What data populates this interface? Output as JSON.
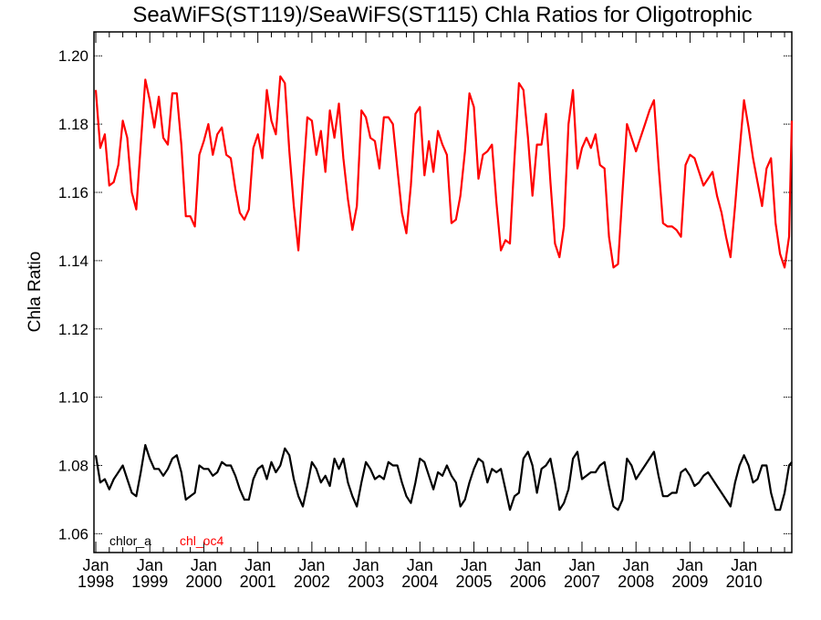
{
  "chart_data": {
    "type": "line",
    "title": "SeaWiFS(ST119)/SeaWiFS(ST115)  Chla Ratios for Oligotrophic",
    "xlabel": "",
    "ylabel": "Chla Ratio",
    "ylim": [
      1.0545,
      1.207
    ],
    "yticks": [
      "1.06",
      "1.08",
      "1.10",
      "1.12",
      "1.14",
      "1.16",
      "1.18",
      "1.20"
    ],
    "ytick_values": [
      1.06,
      1.08,
      1.1,
      1.12,
      1.14,
      1.16,
      1.18,
      1.2
    ],
    "xticks": [
      {
        "month": "Jan",
        "year": "1998"
      },
      {
        "month": "Jan",
        "year": "1999"
      },
      {
        "month": "Jan",
        "year": "2000"
      },
      {
        "month": "Jan",
        "year": "2001"
      },
      {
        "month": "Jan",
        "year": "2002"
      },
      {
        "month": "Jan",
        "year": "2003"
      },
      {
        "month": "Jan",
        "year": "2004"
      },
      {
        "month": "Jan",
        "year": "2005"
      },
      {
        "month": "Jan",
        "year": "2006"
      },
      {
        "month": "Jan",
        "year": "2007"
      },
      {
        "month": "Jan",
        "year": "2008"
      },
      {
        "month": "Jan",
        "year": "2009"
      },
      {
        "month": "Jan",
        "year": "2010"
      }
    ],
    "x_start": "1998-01",
    "x_step": "monthly",
    "grid": false,
    "legend": {
      "placement": "bottom-left",
      "entries": [
        "chlor_a",
        "chl_oc4"
      ]
    },
    "series": [
      {
        "name": "chlor_a",
        "color": "#000000",
        "values": [
          1.083,
          1.075,
          1.076,
          1.073,
          1.076,
          1.078,
          1.08,
          1.076,
          1.072,
          1.071,
          1.078,
          1.086,
          1.082,
          1.079,
          1.079,
          1.077,
          1.079,
          1.082,
          1.083,
          1.078,
          1.07,
          1.071,
          1.072,
          1.08,
          1.079,
          1.079,
          1.077,
          1.078,
          1.081,
          1.08,
          1.08,
          1.077,
          1.073,
          1.07,
          1.07,
          1.076,
          1.079,
          1.08,
          1.076,
          1.081,
          1.078,
          1.08,
          1.085,
          1.083,
          1.076,
          1.071,
          1.068,
          1.074,
          1.081,
          1.079,
          1.075,
          1.077,
          1.074,
          1.082,
          1.079,
          1.082,
          1.075,
          1.071,
          1.068,
          1.075,
          1.081,
          1.079,
          1.076,
          1.077,
          1.076,
          1.081,
          1.08,
          1.08,
          1.075,
          1.071,
          1.069,
          1.075,
          1.082,
          1.081,
          1.077,
          1.073,
          1.078,
          1.077,
          1.08,
          1.077,
          1.075,
          1.068,
          1.07,
          1.075,
          1.079,
          1.082,
          1.081,
          1.075,
          1.079,
          1.078,
          1.079,
          1.073,
          1.067,
          1.071,
          1.072,
          1.082,
          1.084,
          1.08,
          1.072,
          1.079,
          1.08,
          1.082,
          1.075,
          1.067,
          1.069,
          1.073,
          1.082,
          1.084,
          1.076,
          1.077,
          1.078,
          1.078,
          1.08,
          1.081,
          1.074,
          1.068,
          1.067,
          1.07,
          1.082,
          1.08,
          1.076,
          1.078,
          1.08,
          1.082,
          1.084,
          1.077,
          1.071,
          1.071,
          1.072,
          1.072,
          1.078,
          1.079,
          1.077,
          1.074,
          1.075,
          1.077,
          1.078,
          1.076,
          1.074,
          1.072,
          1.07,
          1.068,
          1.075,
          1.08,
          1.083,
          1.08,
          1.075,
          1.076,
          1.08,
          1.08,
          1.072,
          1.067,
          1.067,
          1.072,
          1.08,
          1.081
        ]
      },
      {
        "name": "chl_oc4",
        "color": "#ff0000",
        "values": [
          1.19,
          1.173,
          1.177,
          1.162,
          1.163,
          1.168,
          1.181,
          1.176,
          1.16,
          1.155,
          1.174,
          1.193,
          1.187,
          1.179,
          1.188,
          1.176,
          1.174,
          1.189,
          1.189,
          1.174,
          1.153,
          1.153,
          1.15,
          1.171,
          1.175,
          1.18,
          1.171,
          1.177,
          1.179,
          1.171,
          1.17,
          1.161,
          1.154,
          1.152,
          1.155,
          1.173,
          1.177,
          1.17,
          1.19,
          1.181,
          1.177,
          1.194,
          1.192,
          1.172,
          1.156,
          1.143,
          1.163,
          1.182,
          1.181,
          1.171,
          1.178,
          1.166,
          1.184,
          1.176,
          1.186,
          1.17,
          1.158,
          1.149,
          1.156,
          1.184,
          1.182,
          1.176,
          1.175,
          1.167,
          1.182,
          1.182,
          1.18,
          1.167,
          1.154,
          1.148,
          1.162,
          1.183,
          1.185,
          1.165,
          1.175,
          1.166,
          1.178,
          1.174,
          1.171,
          1.151,
          1.152,
          1.159,
          1.172,
          1.189,
          1.185,
          1.164,
          1.171,
          1.172,
          1.174,
          1.157,
          1.143,
          1.146,
          1.145,
          1.17,
          1.192,
          1.19,
          1.176,
          1.159,
          1.174,
          1.174,
          1.183,
          1.163,
          1.145,
          1.141,
          1.15,
          1.18,
          1.19,
          1.167,
          1.173,
          1.176,
          1.173,
          1.177,
          1.168,
          1.167,
          1.147,
          1.138,
          1.139,
          1.16,
          1.18,
          1.176,
          1.172,
          1.176,
          1.18,
          1.184,
          1.187,
          1.168,
          1.151,
          1.15,
          1.15,
          1.149,
          1.147,
          1.168,
          1.171,
          1.17,
          1.166,
          1.162,
          1.164,
          1.166,
          1.159,
          1.154,
          1.147,
          1.141,
          1.156,
          1.172,
          1.187,
          1.179,
          1.17,
          1.163,
          1.156,
          1.167,
          1.17,
          1.151,
          1.142,
          1.138,
          1.147,
          1.181
        ]
      }
    ]
  }
}
